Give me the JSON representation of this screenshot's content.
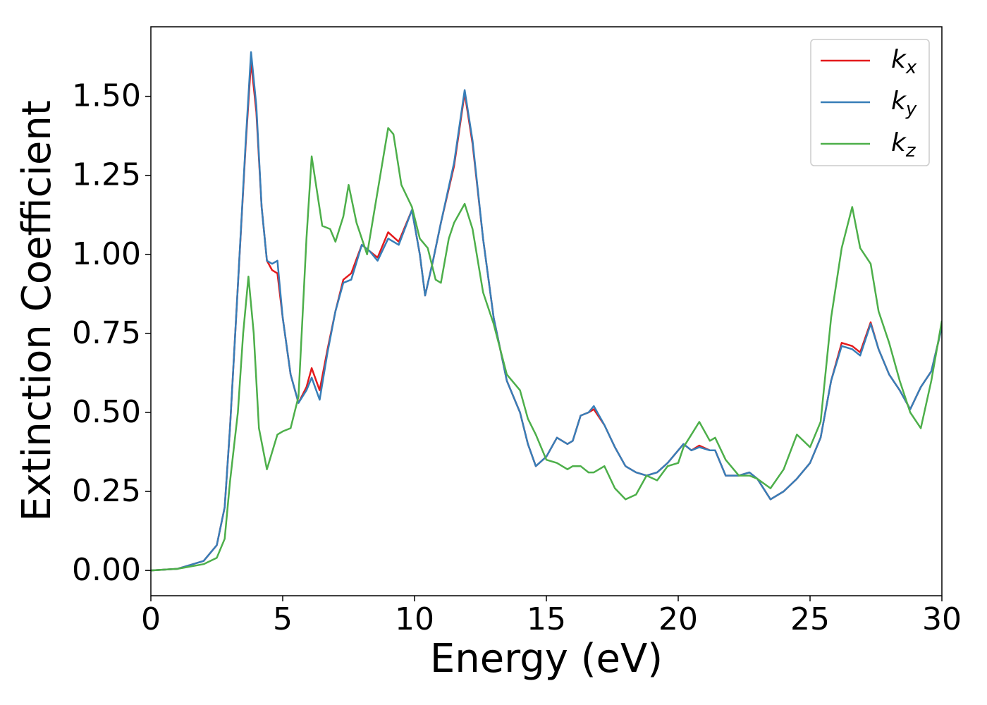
{
  "chart_data": {
    "type": "line",
    "xlabel": "Energy (eV)",
    "ylabel": "Extinction Coefficient",
    "xlim": [
      0,
      30
    ],
    "ylim": [
      -0.08,
      1.72
    ],
    "xticks": [
      0,
      5,
      10,
      15,
      20,
      25,
      30
    ],
    "yticks": [
      {
        "value": 0,
        "label": "0.00"
      },
      {
        "value": 0.25,
        "label": "0.25"
      },
      {
        "value": 0.5,
        "label": "0.50"
      },
      {
        "value": 0.75,
        "label": "0.75"
      },
      {
        "value": 1,
        "label": "1.00"
      },
      {
        "value": 1.25,
        "label": "1.25"
      },
      {
        "value": 1.5,
        "label": "1.50"
      }
    ],
    "legend": "upper right",
    "series": [
      {
        "name": "kx",
        "color": "#e41a1c",
        "x": [
          0,
          1,
          2,
          2.5,
          2.8,
          3.0,
          3.3,
          3.6,
          3.8,
          4.0,
          4.2,
          4.4,
          4.6,
          4.8,
          5.0,
          5.3,
          5.6,
          5.9,
          6.1,
          6.4,
          6.7,
          7.0,
          7.3,
          7.6,
          8.0,
          8.3,
          8.6,
          9.0,
          9.4,
          9.9,
          10.2,
          10.4,
          10.7,
          11.0,
          11.5,
          11.9,
          12.2,
          12.6,
          13.0,
          13.5,
          14.0,
          14.3,
          14.6,
          15.0,
          15.4,
          15.8,
          16.0,
          16.3,
          16.6,
          16.8,
          17.2,
          17.6,
          18.0,
          18.4,
          18.8,
          19.2,
          19.6,
          20.0,
          20.2,
          20.5,
          20.8,
          21.2,
          21.4,
          21.8,
          22.3,
          22.7,
          23.0,
          23.5,
          24.0,
          24.5,
          25.0,
          25.4,
          25.8,
          26.2,
          26.6,
          26.9,
          27.3,
          27.6,
          28.0,
          28.4,
          28.8,
          29.2,
          29.6,
          30
        ],
        "values": [
          0,
          0.005,
          0.03,
          0.08,
          0.2,
          0.45,
          0.9,
          1.35,
          1.61,
          1.45,
          1.15,
          0.98,
          0.95,
          0.94,
          0.8,
          0.62,
          0.53,
          0.58,
          0.64,
          0.57,
          0.7,
          0.82,
          0.92,
          0.94,
          1.03,
          1.01,
          0.99,
          1.07,
          1.04,
          1.14,
          1.0,
          0.87,
          0.98,
          1.1,
          1.28,
          1.51,
          1.35,
          1.05,
          0.8,
          0.6,
          0.5,
          0.4,
          0.33,
          0.36,
          0.42,
          0.4,
          0.41,
          0.49,
          0.5,
          0.51,
          0.46,
          0.39,
          0.33,
          0.31,
          0.3,
          0.31,
          0.34,
          0.38,
          0.4,
          0.38,
          0.395,
          0.38,
          0.38,
          0.3,
          0.3,
          0.31,
          0.29,
          0.225,
          0.25,
          0.29,
          0.34,
          0.42,
          0.6,
          0.72,
          0.71,
          0.69,
          0.785,
          0.7,
          0.62,
          0.57,
          0.51,
          0.58,
          0.63,
          0.77
        ]
      },
      {
        "name": "ky",
        "color": "#377eb8",
        "x": [
          0,
          1,
          2,
          2.5,
          2.8,
          3.0,
          3.3,
          3.6,
          3.8,
          4.0,
          4.2,
          4.4,
          4.6,
          4.8,
          5.0,
          5.3,
          5.6,
          5.9,
          6.1,
          6.4,
          6.7,
          7.0,
          7.3,
          7.6,
          8.0,
          8.3,
          8.6,
          9.0,
          9.4,
          9.9,
          10.2,
          10.4,
          10.7,
          11.0,
          11.5,
          11.9,
          12.2,
          12.6,
          13.0,
          13.5,
          14.0,
          14.3,
          14.6,
          15.0,
          15.4,
          15.8,
          16.0,
          16.3,
          16.6,
          16.8,
          17.2,
          17.6,
          18.0,
          18.4,
          18.8,
          19.2,
          19.6,
          20.0,
          20.2,
          20.5,
          20.8,
          21.2,
          21.4,
          21.8,
          22.3,
          22.7,
          23.0,
          23.5,
          24.0,
          24.5,
          25.0,
          25.4,
          25.8,
          26.2,
          26.6,
          26.9,
          27.3,
          27.6,
          28.0,
          28.4,
          28.8,
          29.2,
          29.6,
          30
        ],
        "values": [
          0,
          0.005,
          0.03,
          0.08,
          0.2,
          0.45,
          0.9,
          1.36,
          1.64,
          1.47,
          1.15,
          0.98,
          0.97,
          0.98,
          0.8,
          0.62,
          0.53,
          0.57,
          0.61,
          0.54,
          0.69,
          0.82,
          0.91,
          0.92,
          1.03,
          1.01,
          0.98,
          1.05,
          1.03,
          1.14,
          1.0,
          0.87,
          0.98,
          1.1,
          1.29,
          1.52,
          1.36,
          1.05,
          0.8,
          0.6,
          0.5,
          0.4,
          0.33,
          0.36,
          0.42,
          0.4,
          0.41,
          0.49,
          0.5,
          0.52,
          0.46,
          0.39,
          0.33,
          0.31,
          0.3,
          0.31,
          0.34,
          0.38,
          0.4,
          0.38,
          0.39,
          0.38,
          0.38,
          0.3,
          0.3,
          0.31,
          0.29,
          0.225,
          0.25,
          0.29,
          0.34,
          0.42,
          0.6,
          0.71,
          0.7,
          0.68,
          0.78,
          0.7,
          0.62,
          0.57,
          0.51,
          0.58,
          0.63,
          0.77
        ]
      },
      {
        "name": "kz",
        "color": "#4daf4a",
        "x": [
          0,
          1,
          2,
          2.5,
          2.8,
          3.0,
          3.3,
          3.5,
          3.7,
          3.9,
          4.1,
          4.4,
          4.8,
          5.0,
          5.3,
          5.6,
          5.9,
          6.1,
          6.3,
          6.5,
          6.8,
          7.0,
          7.3,
          7.5,
          7.8,
          8.2,
          8.5,
          8.7,
          9.0,
          9.2,
          9.5,
          9.9,
          10.2,
          10.5,
          10.8,
          11.0,
          11.3,
          11.5,
          11.9,
          12.2,
          12.6,
          13.0,
          13.5,
          14.0,
          14.3,
          14.6,
          15.0,
          15.4,
          15.8,
          16.0,
          16.3,
          16.6,
          16.8,
          17.2,
          17.6,
          18.0,
          18.4,
          18.8,
          19.2,
          19.6,
          20.0,
          20.2,
          20.5,
          20.8,
          21.2,
          21.4,
          21.8,
          22.3,
          22.7,
          23.0,
          23.5,
          24.0,
          24.5,
          25.0,
          25.4,
          25.8,
          26.2,
          26.6,
          26.9,
          27.3,
          27.6,
          28.0,
          28.4,
          28.8,
          29.2,
          29.6,
          30
        ],
        "values": [
          0,
          0.005,
          0.02,
          0.04,
          0.1,
          0.28,
          0.5,
          0.75,
          0.93,
          0.75,
          0.45,
          0.32,
          0.43,
          0.44,
          0.45,
          0.55,
          1.05,
          1.31,
          1.2,
          1.09,
          1.08,
          1.04,
          1.12,
          1.22,
          1.1,
          1.0,
          1.15,
          1.25,
          1.4,
          1.38,
          1.22,
          1.15,
          1.05,
          1.02,
          0.92,
          0.91,
          1.05,
          1.1,
          1.16,
          1.08,
          0.88,
          0.78,
          0.62,
          0.57,
          0.48,
          0.43,
          0.35,
          0.34,
          0.32,
          0.33,
          0.33,
          0.31,
          0.31,
          0.33,
          0.26,
          0.225,
          0.24,
          0.3,
          0.285,
          0.33,
          0.34,
          0.39,
          0.43,
          0.47,
          0.41,
          0.42,
          0.35,
          0.3,
          0.3,
          0.29,
          0.26,
          0.32,
          0.43,
          0.39,
          0.47,
          0.8,
          1.02,
          1.15,
          1.02,
          0.97,
          0.82,
          0.72,
          0.6,
          0.5,
          0.45,
          0.6,
          0.79
        ]
      }
    ]
  }
}
